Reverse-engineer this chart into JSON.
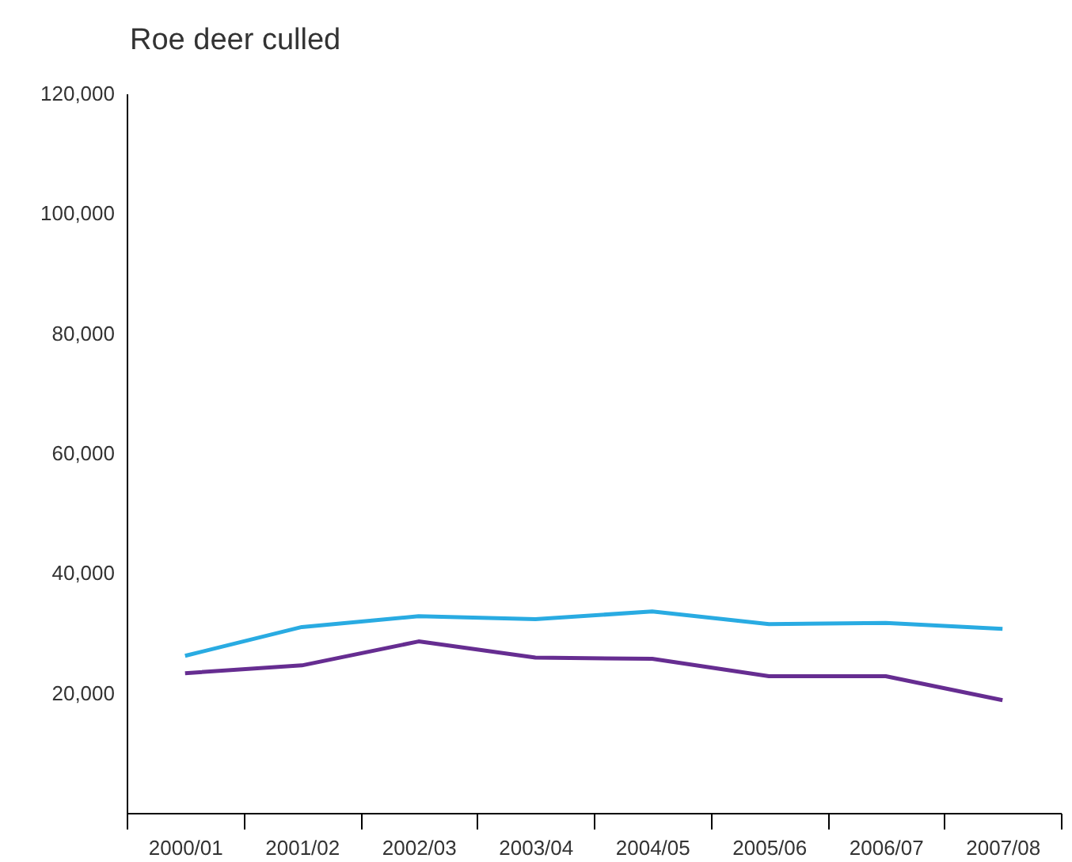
{
  "chart_data": {
    "type": "line",
    "title": "Roe deer culled",
    "categories": [
      "2000/01",
      "2001/02",
      "2002/03",
      "2003/04",
      "2004/05",
      "2005/06",
      "2006/07",
      "2007/08"
    ],
    "series": [
      {
        "color": "#29abe2",
        "values": [
          26200,
          31000,
          32800,
          32300,
          33600,
          31500,
          31700,
          30700
        ]
      },
      {
        "color": "#662d91",
        "values": [
          23300,
          24600,
          28600,
          25900,
          25700,
          22800,
          22800,
          18800
        ]
      }
    ],
    "ylim": [
      0,
      120000
    ],
    "yticks": [
      {
        "value": 20000,
        "label": "20,000"
      },
      {
        "value": 40000,
        "label": "40,000"
      },
      {
        "value": 60000,
        "label": "60,000"
      },
      {
        "value": 80000,
        "label": "80,000"
      },
      {
        "value": 100000,
        "label": "100,000"
      },
      {
        "value": 120000,
        "label": "120,000"
      }
    ],
    "grid": false,
    "legend": false,
    "marker": "none",
    "line_style": "solid"
  }
}
